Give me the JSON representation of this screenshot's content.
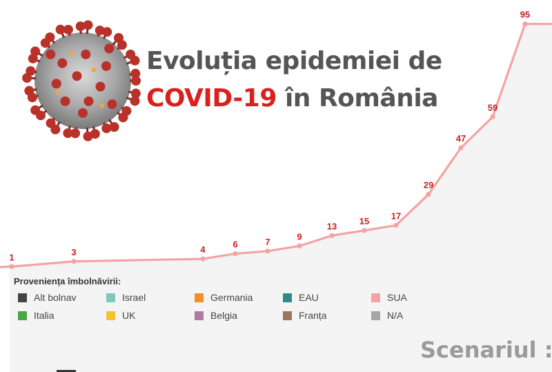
{
  "title": {
    "line1": "Evoluția epidemiei de",
    "highlight": "COVID-19",
    "line2_rest": " în România"
  },
  "legend": {
    "title": "Proveniența îmbolnăvirii:",
    "items": [
      {
        "label": "Alt bolnav",
        "color": "#444444"
      },
      {
        "label": "Israel",
        "color": "#7cc8be"
      },
      {
        "label": "Germania",
        "color": "#f28e2b"
      },
      {
        "label": "EAU",
        "color": "#2e8b8b"
      },
      {
        "label": "SUA",
        "color": "#f4a3a3"
      },
      {
        "label": "Italia",
        "color": "#4aa543"
      },
      {
        "label": "UK",
        "color": "#f1c232"
      },
      {
        "label": "Belgia",
        "color": "#b07aa1"
      },
      {
        "label": "Franța",
        "color": "#9c755f"
      },
      {
        "label": "N/A",
        "color": "#a6a6a6"
      }
    ]
  },
  "scenario_label": "Scenariul :",
  "colors": {
    "line": "#f4a3a3",
    "labels": "#cc1f1f",
    "area": "#f4f4f4",
    "title_accent": "#d9201e"
  },
  "chart_data": {
    "type": "area",
    "series": [
      {
        "values": [
          1,
          3,
          4,
          6,
          7,
          9,
          13,
          15,
          17,
          29,
          47,
          59,
          95,
          95
        ]
      }
    ],
    "data_labels": [
      "1",
      "3",
      "4",
      "6",
      "7",
      "9",
      "13",
      "15",
      "17",
      "29",
      "47",
      "59",
      "95"
    ]
  }
}
